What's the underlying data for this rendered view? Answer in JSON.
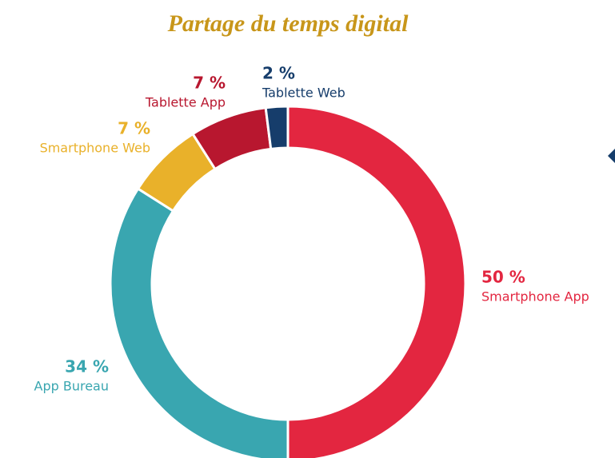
{
  "chart_data": {
    "type": "donut",
    "title": "Partage du temps digital",
    "categories": [
      "Smartphone App",
      "App Bureau",
      "Smartphone Web",
      "Tablette App",
      "Tablette Web"
    ],
    "values": [
      50,
      34,
      7,
      7,
      2
    ],
    "value_labels": [
      "50 %",
      "34 %",
      "7 %",
      "7 %",
      "2 %"
    ],
    "colors": [
      "#e32640",
      "#39a6b0",
      "#e9b12a",
      "#b8172f",
      "#163d6b"
    ]
  }
}
